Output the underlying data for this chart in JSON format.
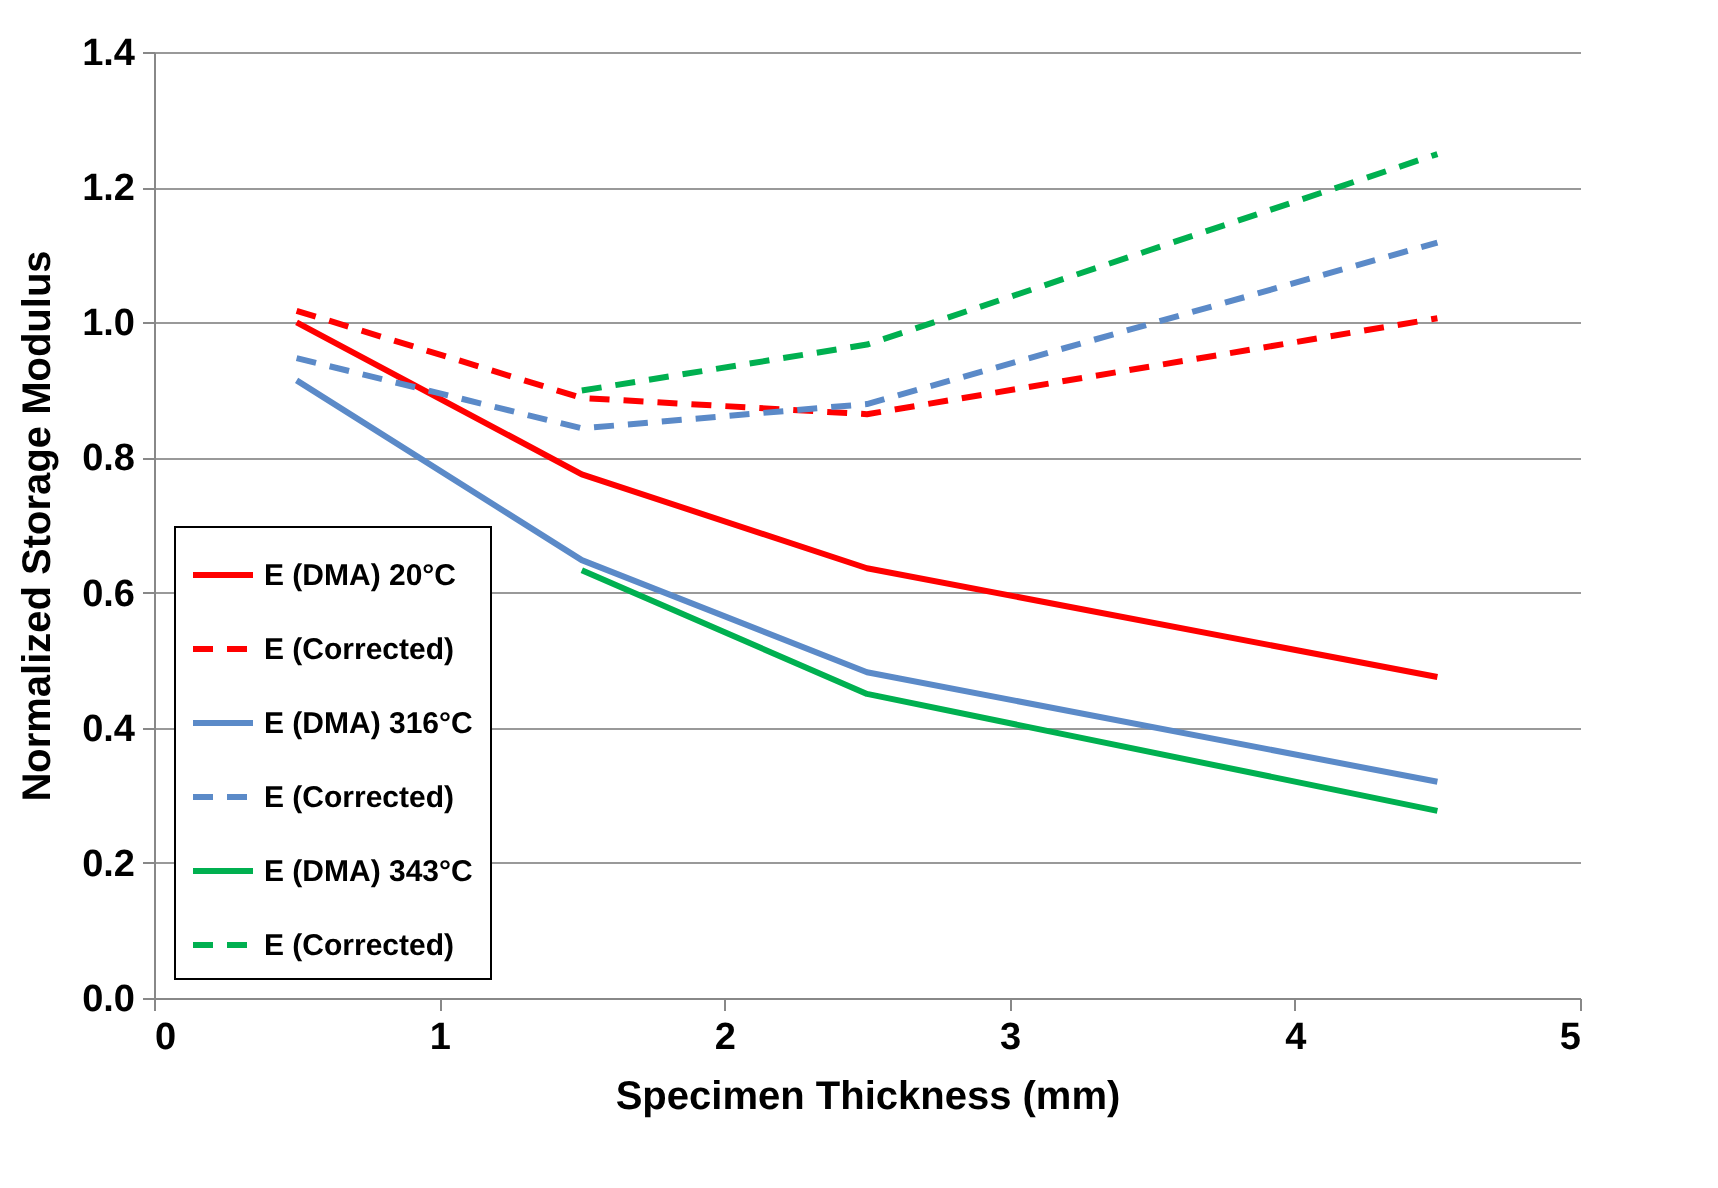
{
  "chart_data": {
    "type": "line",
    "xlabel": "Specimen Thickness (mm)",
    "ylabel": "Normalized Storage Modulus",
    "xlim": [
      0,
      5
    ],
    "xticks": [
      0,
      1,
      2,
      3,
      4,
      5
    ],
    "ylim": [
      0,
      1.4
    ],
    "yticks": [
      {
        "value": 0,
        "label": "0.0"
      },
      0.2,
      0.4,
      0.6,
      0.8,
      {
        "value": 1,
        "label": "1.0"
      },
      1.2,
      1.4
    ],
    "grid": "y",
    "legend": "bottom left",
    "marker": "none",
    "series": [
      {
        "name": "E (DMA) 20°C",
        "color": "#ff0000",
        "line_style": "solid",
        "x": [
          0.5,
          1.5,
          2.5,
          4.5
        ],
        "values": [
          1.0,
          0.775,
          0.636,
          0.475
        ]
      },
      {
        "name": "E (Corrected)",
        "color": "#ff0000",
        "line_style": "dashed",
        "x": [
          0.5,
          1.5,
          2.5,
          4.5
        ],
        "values": [
          1.017,
          0.888,
          0.864,
          1.006
        ]
      },
      {
        "name": "E (DMA) 316°C",
        "color": "#5b8ac8",
        "line_style": "solid",
        "x": [
          0.5,
          1.5,
          2.5,
          4.5
        ],
        "values": [
          0.914,
          0.648,
          0.482,
          0.32
        ]
      },
      {
        "name": "E (Corrected)",
        "color": "#5b8ac8",
        "line_style": "dashed",
        "x": [
          0.5,
          1.5,
          2.5,
          4.5
        ],
        "values": [
          0.947,
          0.843,
          0.879,
          1.118
        ]
      },
      {
        "name": "E (DMA) 343°C",
        "color": "#00b050",
        "line_style": "solid",
        "x": [
          1.5,
          2.5,
          4.5
        ],
        "values": [
          0.633,
          0.45,
          0.277
        ]
      },
      {
        "name": "E (Corrected)",
        "color": "#00b050",
        "line_style": "dashed",
        "x": [
          1.5,
          2.5,
          4.5
        ],
        "values": [
          0.899,
          0.967,
          1.249
        ]
      }
    ]
  }
}
